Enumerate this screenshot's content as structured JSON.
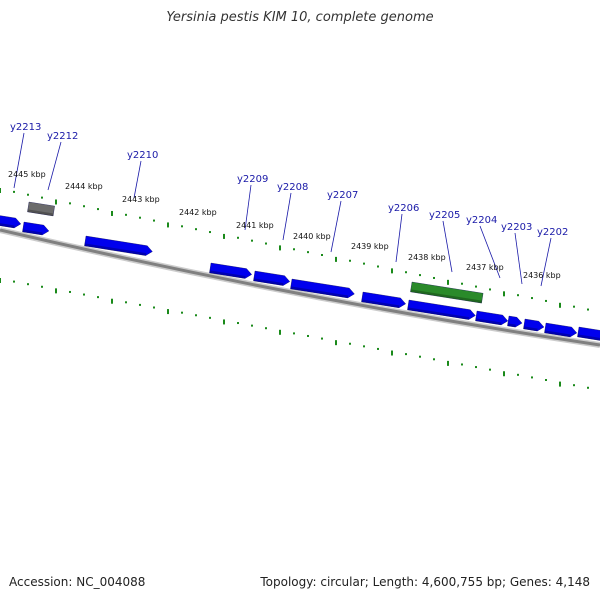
{
  "title": "Yersinia pestis KIM 10, complete genome",
  "footer": {
    "accession": "Accession: NC_004088",
    "summary": "Topology: circular; Length: 4,600,755 bp; Genes: 4,148"
  },
  "colors": {
    "forward_gene": "#0000ee",
    "reverse_gene": "#0000ee",
    "rna_gene": "#2a8a2a",
    "pseudo_gene": "#6b6b6b",
    "ticks": "#1a8a1a",
    "backbone": "#808080",
    "labels": "#1a1aa8"
  },
  "tick_labels": [
    "2445 kbp",
    "2444 kbp",
    "2443 kbp",
    "2442 kbp",
    "2441 kbp",
    "2440 kbp",
    "2439 kbp",
    "2438 kbp",
    "2437 kbp",
    "2436 kbp"
  ],
  "gene_labels": [
    "y2213",
    "y2212",
    "y2210",
    "y2209",
    "y2208",
    "y2207",
    "y2206",
    "y2205",
    "y2204",
    "y2203",
    "y2202"
  ]
}
